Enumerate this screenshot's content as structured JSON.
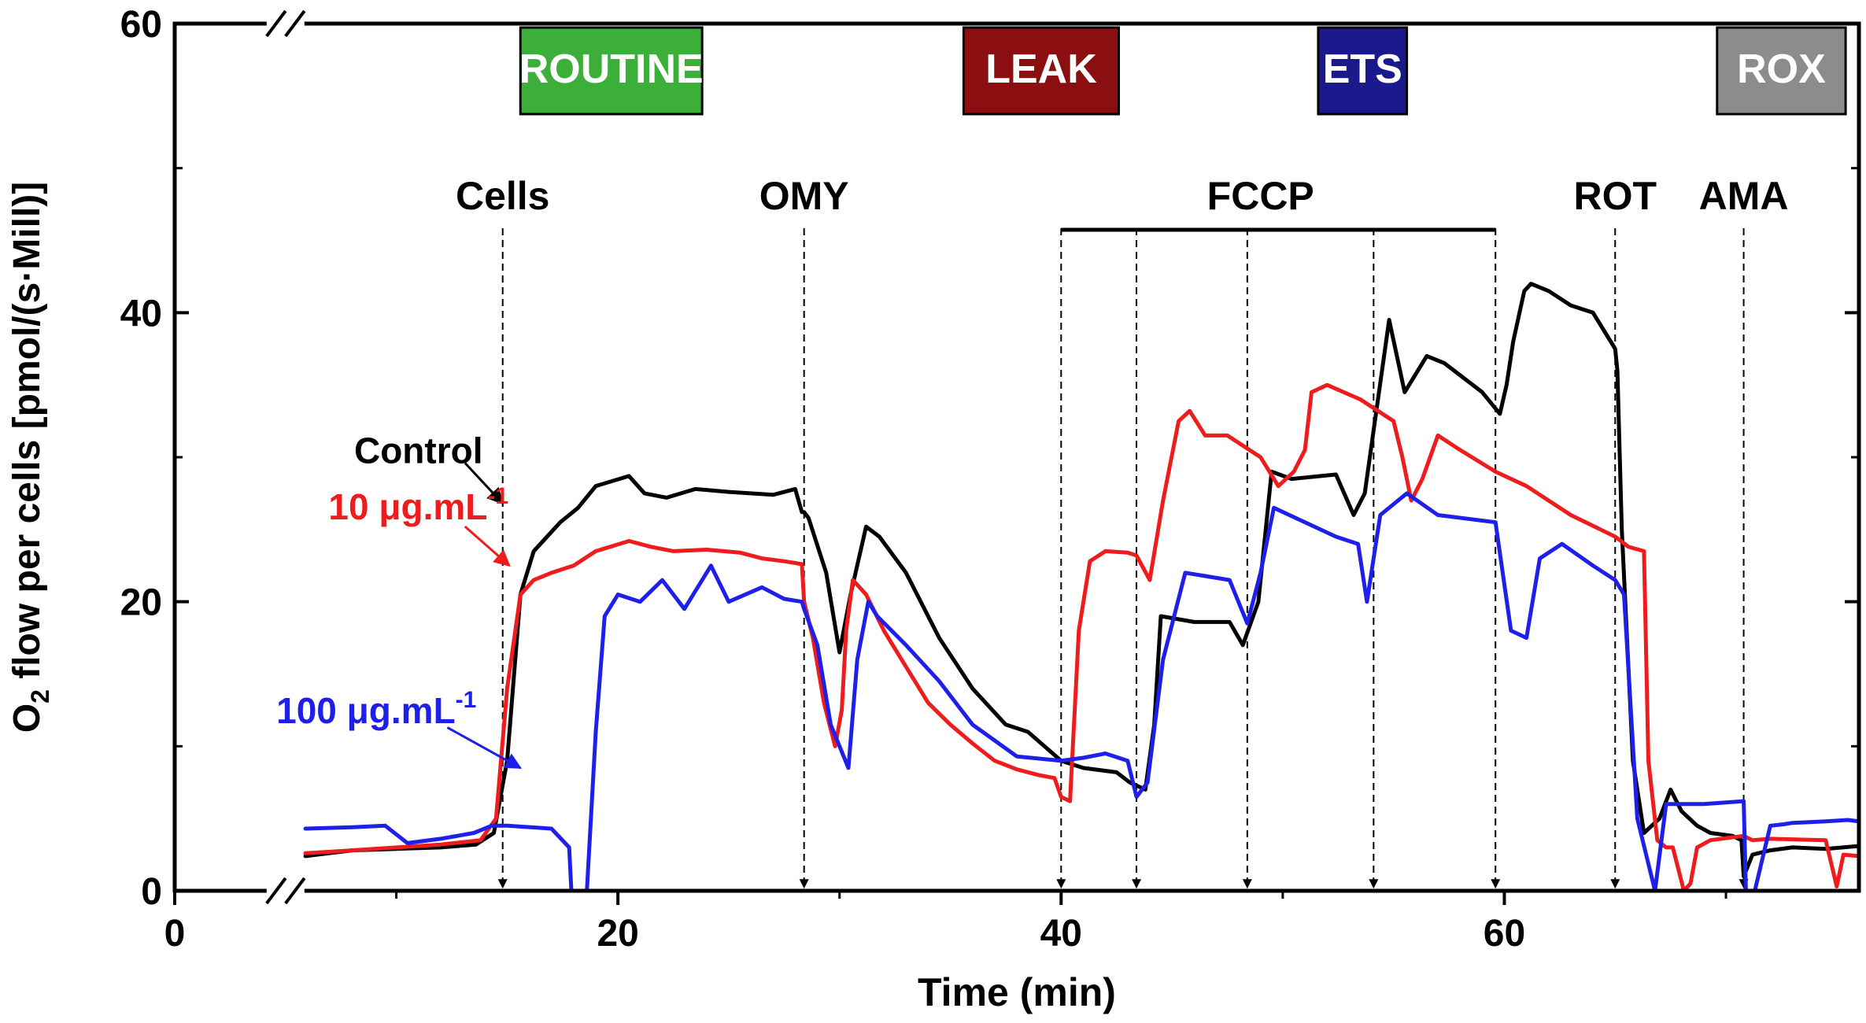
{
  "chart_data": {
    "type": "line",
    "xlabel": "Time (min)",
    "ylabel_prefix": "O",
    "ylabel_subscript": "2",
    "ylabel_suffix": " flow per cells [pmol/(s·Mill)]",
    "xlim": [
      0,
      76
    ],
    "ylim": [
      0,
      60
    ],
    "x_ticks": [
      0,
      20,
      40,
      60
    ],
    "y_ticks": [
      0,
      20,
      40,
      60
    ],
    "x_tick_labels": [
      "0",
      "20",
      "40",
      "60"
    ],
    "y_tick_labels": [
      "0",
      "20",
      "40",
      "60"
    ],
    "axis_break_x": 5,
    "states": [
      {
        "label": "ROUTINE",
        "color": "#3cae3a",
        "x_start": 15.6,
        "x_end": 23.8
      },
      {
        "label": "LEAK",
        "color": "#8b0f10",
        "x_start": 35.6,
        "x_end": 42.6
      },
      {
        "label": "ETS",
        "color": "#1a1a8c",
        "x_start": 51.6,
        "x_end": 55.6
      },
      {
        "label": "ROX",
        "color": "#8c8c8c",
        "x_start": 69.6,
        "x_end": 75.4
      }
    ],
    "titration_labels": [
      {
        "label": "Cells",
        "x": 14.8
      },
      {
        "label": "OMY",
        "x": 28.4
      },
      {
        "label": "FCCP",
        "x": 49.0
      },
      {
        "label": "ROT",
        "x": 65.0
      },
      {
        "label": "AMA",
        "x": 70.8
      }
    ],
    "titration_markers": [
      14.8,
      28.4,
      40.0,
      43.4,
      48.4,
      54.1,
      59.6,
      65.0,
      70.8
    ],
    "fccp_bracket": [
      40.0,
      59.6
    ],
    "series": [
      {
        "name": "Control",
        "color": "#000000",
        "x": [
          5.9,
          8,
          10,
          12,
          13.6,
          14.4,
          15.0,
          15.6,
          16.2,
          16.8,
          17.4,
          18.2,
          19,
          20.5,
          21.2,
          22.2,
          23.5,
          25,
          27,
          28.0,
          28.3,
          28.4,
          28.6,
          29.4,
          30.0,
          30.5,
          31.2,
          31.8,
          33,
          34.5,
          36,
          37.5,
          38.5,
          40,
          41,
          42.5,
          43.1,
          43.8,
          44.2,
          44.5,
          46,
          47.6,
          48.2,
          48.9,
          49.5,
          50.4,
          52.4,
          53.2,
          53.7,
          54.8,
          55.5,
          56.5,
          57.3,
          59.0,
          59.8,
          60.1,
          60.4,
          60.9,
          61.2,
          62.0,
          63.0,
          64,
          65.0,
          65.1,
          65.3,
          65.8,
          66.3,
          67.0,
          67.5,
          68.0,
          68.7,
          69.3,
          70.3,
          70.7,
          70.8,
          71.2,
          72,
          73,
          74.5,
          76
        ],
        "y": [
          2.4,
          2.8,
          2.9,
          3.0,
          3.2,
          4.0,
          9.0,
          20.5,
          23.5,
          24.5,
          25.5,
          26.5,
          28.0,
          28.7,
          27.5,
          27.2,
          27.8,
          27.6,
          27.4,
          27.8,
          26.2,
          26.2,
          25.8,
          22.0,
          16.5,
          20.5,
          25.2,
          24.5,
          22.0,
          17.5,
          14.0,
          11.5,
          11.0,
          9.0,
          8.5,
          8.2,
          7.5,
          7.0,
          11.5,
          19.0,
          18.6,
          18.6,
          17.0,
          20.0,
          29.0,
          28.5,
          28.8,
          26.0,
          27.5,
          39.5,
          34.5,
          37.0,
          36.5,
          34.5,
          33.0,
          35.0,
          38.0,
          41.5,
          42.0,
          41.5,
          40.5,
          40.0,
          37.5,
          36.0,
          25.0,
          9.0,
          4.0,
          5.0,
          7.0,
          5.5,
          4.5,
          4.0,
          3.8,
          3.5,
          1.0,
          2.5,
          2.8,
          3.0,
          2.9,
          3.1
        ]
      },
      {
        "name": "10 μg.mL",
        "color": "#ee1c1c",
        "x": [
          5.9,
          8,
          10,
          12,
          13.8,
          14.5,
          15.0,
          15.6,
          16.2,
          17,
          18,
          19,
          20.5,
          21.5,
          22.5,
          24,
          25.5,
          26.5,
          27.5,
          28.3,
          28.4,
          28.8,
          29.3,
          29.8,
          30.1,
          30.3,
          30.6,
          31.2,
          32,
          33,
          34,
          35,
          36,
          37,
          38,
          39,
          39.7,
          40.0,
          40.4,
          40.8,
          41.3,
          42,
          43.0,
          43.4,
          44,
          44.6,
          45.3,
          45.8,
          46.5,
          47.5,
          49,
          49.8,
          50.5,
          51.0,
          51.3,
          52.0,
          53.5,
          55.0,
          55.4,
          55.8,
          56.3,
          57.0,
          58,
          59.6,
          61,
          63,
          65.0,
          65.6,
          66.3,
          66.5,
          66.9,
          67.3,
          67.6,
          68.1,
          68.4,
          68.7,
          69.3,
          70.8,
          71.2,
          72,
          74.5,
          75.0,
          75.3,
          76
        ],
        "y": [
          2.6,
          2.8,
          3.0,
          3.2,
          3.5,
          5.0,
          14.0,
          20.5,
          21.5,
          22.0,
          22.5,
          23.5,
          24.2,
          23.8,
          23.5,
          23.6,
          23.4,
          23.0,
          22.8,
          22.6,
          20.0,
          17.5,
          13.0,
          10.0,
          12.5,
          18.0,
          21.5,
          20.5,
          18.0,
          15.5,
          13.0,
          11.5,
          10.2,
          9.0,
          8.4,
          8.0,
          7.8,
          6.5,
          6.2,
          18.0,
          22.8,
          23.5,
          23.4,
          23.2,
          21.5,
          27.0,
          32.5,
          33.2,
          31.5,
          31.5,
          30.0,
          28.0,
          29.0,
          30.5,
          34.5,
          35.0,
          34.0,
          32.5,
          30.0,
          27.0,
          28.5,
          31.5,
          30.5,
          29.0,
          28.0,
          26.0,
          24.5,
          23.8,
          23.5,
          9.0,
          3.5,
          3.0,
          3.0,
          0.0,
          0.5,
          3.0,
          3.5,
          3.8,
          3.5,
          3.6,
          3.5,
          0.3,
          2.5,
          2.4
        ]
      },
      {
        "name": "100 μg.mL",
        "color": "#1f1fea",
        "x": [
          5.9,
          8,
          9.5,
          10.5,
          12,
          13.5,
          14.3,
          15.0,
          17.0,
          17.8,
          17.9,
          18.6,
          19.0,
          19.4,
          20,
          21,
          22,
          23,
          24.2,
          25.0,
          26.5,
          27.5,
          28.3,
          28.4,
          29.0,
          29.6,
          30.4,
          30.8,
          31.3,
          31.7,
          33,
          34.5,
          36,
          38,
          40,
          41,
          42,
          43.0,
          43.4,
          43.9,
          44.6,
          45.6,
          47.6,
          48.4,
          49.0,
          49.6,
          52.4,
          53.4,
          53.8,
          54.4,
          55.6,
          57.0,
          59.6,
          60.3,
          61.0,
          61.6,
          62.6,
          64,
          65.0,
          65.4,
          66.0,
          66.8,
          67.3,
          67.8,
          69,
          70.8,
          70.9,
          71.3,
          72.0,
          72.6,
          73,
          74.5,
          75.5,
          76
        ],
        "y": [
          4.3,
          4.4,
          4.5,
          3.3,
          3.6,
          4.0,
          4.5,
          4.5,
          4.3,
          3.0,
          0.0,
          0.0,
          11.0,
          19.0,
          20.5,
          20.0,
          21.5,
          19.5,
          22.5,
          20.0,
          21.0,
          20.2,
          20.0,
          19.5,
          17.0,
          11.5,
          8.5,
          16.0,
          20.0,
          19.0,
          17.0,
          14.5,
          11.5,
          9.3,
          9.0,
          9.2,
          9.5,
          9.0,
          6.5,
          7.5,
          16.0,
          22.0,
          21.5,
          18.5,
          22.0,
          26.5,
          24.5,
          24.0,
          20.0,
          26.0,
          27.5,
          26.0,
          25.5,
          18.0,
          17.5,
          23.0,
          24.0,
          22.5,
          21.5,
          20.5,
          5.0,
          0.0,
          6.0,
          6.0,
          6.0,
          6.2,
          0.0,
          0.0,
          4.5,
          4.6,
          4.7,
          4.8,
          4.9,
          4.8
        ]
      }
    ],
    "annotations": [
      {
        "text": "Control",
        "superscript": "",
        "color": "#000000",
        "tx": 11.0,
        "ty": 29.6,
        "ax1": 13.1,
        "ay1": 29.6,
        "ax2": 14.8,
        "ay2": 26.8
      },
      {
        "text": "10 μg.mL",
        "superscript": "-1",
        "color": "#ee1c1c",
        "tx": 11.0,
        "ty": 25.7,
        "ax1": 13.1,
        "ay1": 25.2,
        "ax2": 15.1,
        "ay2": 22.5
      },
      {
        "text": "100 μg.mL",
        "superscript": "-1",
        "color": "#1f1fea",
        "tx": 9.1,
        "ty": 11.6,
        "ax1": 12.3,
        "ay1": 11.3,
        "ax2": 15.6,
        "ay2": 8.5
      }
    ]
  }
}
